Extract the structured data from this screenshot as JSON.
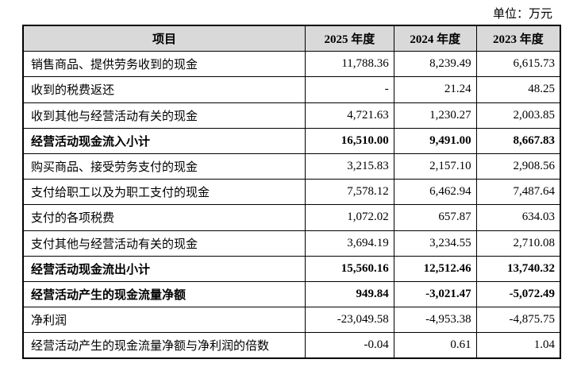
{
  "unit": "单位：万元",
  "table": {
    "header": [
      "项目",
      "2025 年度",
      "2024 年度",
      "2023 年度"
    ],
    "rows": [
      {
        "cells": [
          "销售商品、提供劳务收到的现金",
          "11,788.36",
          "8,239.49",
          "6,615.73"
        ],
        "bold": false
      },
      {
        "cells": [
          "收到的税费返还",
          "-",
          "21.24",
          "48.25"
        ],
        "bold": false
      },
      {
        "cells": [
          "收到其他与经营活动有关的现金",
          "4,721.63",
          "1,230.27",
          "2,003.85"
        ],
        "bold": false
      },
      {
        "cells": [
          "经营活动现金流入小计",
          "16,510.00",
          "9,491.00",
          "8,667.83"
        ],
        "bold": true
      },
      {
        "cells": [
          "购买商品、接受劳务支付的现金",
          "3,215.83",
          "2,157.10",
          "2,908.56"
        ],
        "bold": false
      },
      {
        "cells": [
          "支付给职工以及为职工支付的现金",
          "7,578.12",
          "6,462.94",
          "7,487.64"
        ],
        "bold": false
      },
      {
        "cells": [
          "支付的各项税费",
          "1,072.02",
          "657.87",
          "634.03"
        ],
        "bold": false
      },
      {
        "cells": [
          "支付其他与经营活动有关的现金",
          "3,694.19",
          "3,234.55",
          "2,710.08"
        ],
        "bold": false
      },
      {
        "cells": [
          "经营活动现金流出小计",
          "15,560.16",
          "12,512.46",
          "13,740.32"
        ],
        "bold": true
      },
      {
        "cells": [
          "经营活动产生的现金流量净额",
          "949.84",
          "-3,021.47",
          "-5,072.49"
        ],
        "bold": true
      },
      {
        "cells": [
          "净利润",
          "-23,049.58",
          "-4,953.38",
          "-4,875.75"
        ],
        "bold": false
      },
      {
        "cells": [
          "经营活动产生的现金流量净额与净利润的倍数",
          "-0.04",
          "0.61",
          "1.04"
        ],
        "bold": false
      }
    ]
  }
}
